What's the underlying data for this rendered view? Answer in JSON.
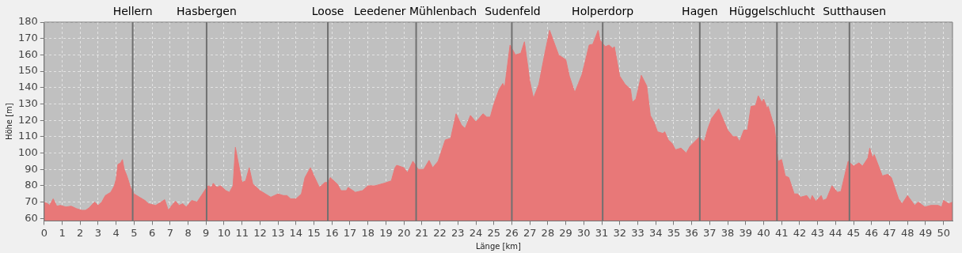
{
  "chart_data": {
    "type": "area",
    "xlabel": "Länge [km]",
    "ylabel": "Höhe [m]",
    "color": "#e87878",
    "grid": true,
    "xlim": [
      0,
      50.5
    ],
    "ylim": [
      58.5,
      180
    ],
    "xticks": [
      0,
      1,
      2,
      3,
      4,
      5,
      6,
      7,
      8,
      9,
      10,
      11,
      12,
      13,
      14,
      15,
      16,
      17,
      18,
      19,
      20,
      21,
      22,
      23,
      24,
      25,
      26,
      27,
      28,
      29,
      30,
      31,
      32,
      33,
      34,
      35,
      36,
      37,
      38,
      39,
      40,
      41,
      42,
      43,
      44,
      45,
      46,
      47,
      48,
      49,
      50
    ],
    "yticks": [
      60,
      70,
      80,
      90,
      100,
      110,
      120,
      130,
      140,
      150,
      160,
      170,
      180
    ],
    "x": [
      0,
      0.2,
      0.3,
      0.5,
      0.7,
      0.9,
      1.2,
      1.5,
      1.8,
      2.1,
      2.3,
      2.5,
      2.8,
      3.0,
      3.2,
      3.4,
      3.7,
      3.9,
      4.0,
      4.1,
      4.25,
      4.35,
      4.45,
      4.6,
      4.8,
      5.0,
      5.3,
      5.6,
      5.8,
      6.2,
      6.5,
      6.7,
      6.9,
      7.1,
      7.3,
      7.5,
      7.7,
      7.9,
      8.2,
      8.5,
      8.8,
      9.1,
      9.3,
      9.4,
      9.6,
      9.8,
      10.1,
      10.3,
      10.5,
      10.63,
      11.0,
      11.2,
      11.4,
      11.6,
      12.0,
      12.3,
      12.6,
      12.8,
      13.0,
      13.3,
      13.5,
      13.7,
      14.0,
      14.3,
      14.5,
      14.8,
      15.0,
      15.3,
      15.6,
      15.8,
      15.9,
      16.3,
      16.5,
      16.8,
      16.9,
      17.3,
      17.7,
      18.0,
      18.4,
      18.9,
      19.3,
      19.5,
      19.6,
      20.0,
      20.2,
      20.5,
      20.8,
      21.1,
      21.4,
      21.6,
      21.9,
      22.3,
      22.6,
      22.9,
      23.2,
      23.4,
      23.7,
      24.0,
      24.4,
      24.6,
      24.8,
      25.0,
      25.3,
      25.5,
      25.6,
      25.9,
      26.2,
      26.5,
      26.7,
      27.0,
      27.2,
      27.5,
      27.8,
      28.1,
      28.6,
      29.0,
      29.2,
      29.5,
      29.7,
      29.9,
      30.3,
      30.5,
      30.8,
      30.9,
      31.2,
      31.4,
      31.6,
      31.7,
      32.0,
      32.3,
      32.6,
      32.7,
      32.9,
      33.2,
      33.5,
      33.7,
      33.9,
      34.1,
      34.4,
      34.5,
      34.7,
      34.9,
      35.1,
      35.4,
      35.7,
      35.9,
      36.4,
      36.7,
      36.9,
      37.1,
      37.5,
      38.0,
      38.3,
      38.5,
      38.66,
      38.9,
      39.1,
      39.3,
      39.55,
      39.7,
      39.9,
      40.0,
      40.2,
      40.25,
      40.4,
      40.6,
      40.8,
      41.0,
      41.2,
      41.4,
      41.7,
      41.9,
      42.05,
      42.4,
      42.6,
      42.7,
      42.9,
      43.2,
      43.3,
      43.5,
      43.8,
      44.1,
      44.3,
      44.5,
      44.7,
      45.0,
      45.3,
      45.5,
      45.8,
      45.9,
      46.05,
      46.15,
      46.6,
      46.9,
      47.1,
      47.5,
      47.7,
      48.0,
      48.4,
      48.6,
      48.96,
      49.3,
      49.7,
      49.9,
      50.0,
      50.3,
      50.5
    ],
    "values": [
      70,
      69,
      68,
      72,
      67.5,
      68,
      67,
      67.5,
      66,
      65,
      65,
      66.5,
      70,
      68,
      70,
      74,
      76,
      80,
      84,
      93,
      94,
      96,
      90,
      86,
      79,
      75,
      73,
      71,
      69,
      68,
      70,
      71.5,
      65,
      68,
      70.5,
      68,
      69,
      67,
      71,
      70,
      75,
      80,
      79,
      81.5,
      79,
      80,
      77,
      76,
      80,
      103.5,
      82,
      83,
      91,
      81,
      77,
      75,
      73,
      74,
      75,
      74,
      74,
      72,
      72,
      75,
      85,
      91,
      86,
      79,
      82,
      82,
      85,
      81,
      77,
      77,
      79,
      76,
      77,
      80,
      80,
      81.5,
      83,
      91,
      92.5,
      91,
      88,
      95,
      90,
      90,
      95.5,
      91,
      95,
      108,
      109,
      124,
      117,
      115,
      123,
      119,
      124,
      122,
      122,
      130,
      139,
      142.5,
      140,
      166,
      160,
      161,
      168,
      144,
      133.5,
      142,
      159,
      175,
      160,
      157,
      147,
      137,
      142.5,
      148,
      166,
      166.5,
      175,
      169,
      165,
      166,
      164,
      165,
      147,
      142,
      139,
      131,
      133,
      147.5,
      141,
      123,
      119,
      113,
      112,
      113,
      108,
      106,
      102,
      103,
      100,
      104,
      109.5,
      107,
      115,
      121,
      127,
      114,
      110,
      110,
      107,
      114,
      114,
      128.5,
      129,
      135,
      131,
      133,
      127,
      128.5,
      123,
      116,
      95,
      96,
      86,
      85,
      75,
      75,
      73,
      74,
      71,
      74,
      70.5,
      74,
      71,
      72,
      80,
      76,
      76.5,
      86,
      95,
      92,
      94,
      92,
      97,
      103,
      97,
      99,
      86,
      87,
      85,
      72,
      69,
      74,
      68,
      70,
      67,
      68,
      68,
      67,
      71,
      69,
      70
    ],
    "ref_lines": [
      {
        "axis": "x",
        "value": 4.92,
        "label": "Hellern",
        "color": "#707070"
      },
      {
        "axis": "x",
        "value": 9.03,
        "label": "Hasbergen",
        "color": "#707070"
      },
      {
        "axis": "x",
        "value": 15.77,
        "label": "Loose",
        "color": "#707070"
      },
      {
        "axis": "x",
        "value": 20.68,
        "label": "Leedener Mühlenbach",
        "color": "#707070"
      },
      {
        "axis": "x",
        "value": 26.0,
        "label": "Sudenfeld",
        "color": "#707070"
      },
      {
        "axis": "x",
        "value": 31.05,
        "label": "Holperdorp",
        "color": "#707070"
      },
      {
        "axis": "x",
        "value": 36.45,
        "label": "Hagen",
        "color": "#707070"
      },
      {
        "axis": "x",
        "value": 40.74,
        "label": "Hüggelschlucht",
        "color": "#707070"
      },
      {
        "axis": "x",
        "value": 44.77,
        "label": "Sutthausen",
        "color": "#707070"
      }
    ]
  }
}
